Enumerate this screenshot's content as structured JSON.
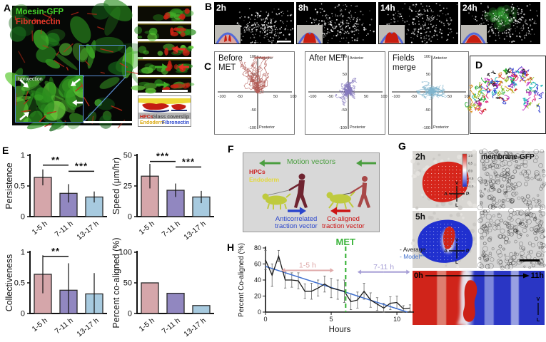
{
  "panels": {
    "A": {
      "label": "A",
      "stain_green": "Moesin-GFP",
      "stain_red": "Fibronectin",
      "inset_label": "t-projection",
      "schematic": {
        "hpcs": "HPCs",
        "endoderm": "Endoderm",
        "glass": "Glass coverslip",
        "fibronectin": "Fibronectin"
      }
    },
    "B": {
      "label": "B",
      "timepoints": [
        "2h",
        "8h",
        "14h",
        "24h"
      ]
    },
    "C": {
      "label": "C",
      "axis": {
        "top": "Anterior",
        "bottom": "Posterior",
        "xticks": [
          "-100",
          "-50",
          "50",
          "100"
        ],
        "xtick_vals": [
          -100,
          -50,
          50,
          100
        ],
        "yticks": [
          "100",
          "50",
          "-50",
          "-100"
        ],
        "ytick_vals": [
          100,
          50,
          -50,
          -100
        ]
      },
      "plots": [
        {
          "title": "Before MET",
          "track_color": "#b25b55"
        },
        {
          "title": "After MET",
          "track_color": "#8579bd"
        },
        {
          "title": "Fields merge",
          "track_color": "#7fb4cc"
        }
      ]
    },
    "D": {
      "label": "D"
    },
    "E": {
      "label": "E"
    },
    "F": {
      "label": "F",
      "motion_vectors": "Motion vectors",
      "hpcs": "HPCs",
      "endoderm": "Endoderm",
      "anticorrelated_line1": "Anticorrelated",
      "anticorrelated_line2": "traction vector",
      "coaligned_line1": "Co-aligned",
      "coaligned_line2": "traction vector",
      "colors": {
        "motion": "#4a9e3f",
        "anticorrelated": "#2b46cc",
        "coaligned": "#cc1414",
        "hpcs": "#cc2222",
        "endoderm": "#e3d83a",
        "dog": "#bfca3e",
        "walker": "#6f2430",
        "runner": "#a84848"
      }
    },
    "G": {
      "label": "G",
      "timepoints": [
        "2h",
        "5h"
      ],
      "membrane_label": "membrane-GFP",
      "colorbar_ticks": [
        "1.0",
        "0.5",
        "0.0",
        "-0.5",
        "-1.0"
      ],
      "compass": {
        "v": "V",
        "a": "A",
        "p": "P",
        "l": "L"
      },
      "kymograph": {
        "start": "0h",
        "end": "11h",
        "v": "V",
        "l": "L"
      },
      "heat_colors": {
        "positive": "#d6251b",
        "negative": "#2030cf"
      }
    },
    "H": {
      "label": "H"
    }
  },
  "chart_data": [
    {
      "id": "persistence",
      "type": "bar",
      "ylabel": "Persistence",
      "categories": [
        "1-5 h",
        "7-11 h",
        "13-17 h"
      ],
      "values": [
        0.64,
        0.38,
        0.32
      ],
      "errors": [
        0.13,
        0.15,
        0.09
      ],
      "ylim": [
        0,
        1
      ],
      "yticks": [
        "0",
        "0.5",
        "1"
      ],
      "ytick_vals": [
        0,
        0.5,
        1
      ],
      "bar_colors": [
        "#d5a6aa",
        "#9187c0",
        "#a7cadf"
      ],
      "significance": [
        {
          "from": 0,
          "to": 1,
          "label": "**",
          "y": 0.84
        },
        {
          "from": 1,
          "to": 2,
          "label": "***",
          "y": 0.74
        }
      ]
    },
    {
      "id": "speed",
      "type": "bar",
      "ylabel": "Speed (μm/hr)",
      "categories": [
        "1-5 h",
        "7-11 h",
        "13-17 h"
      ],
      "values": [
        33,
        21.5,
        16
      ],
      "errors": [
        10,
        5.5,
        5
      ],
      "ylim": [
        0,
        50
      ],
      "yticks": [
        "0",
        "25",
        "50"
      ],
      "ytick_vals": [
        0,
        25,
        50
      ],
      "bar_colors": [
        "#d5a6aa",
        "#9187c0",
        "#a7cadf"
      ],
      "significance": [
        {
          "from": 0,
          "to": 1,
          "label": "***",
          "y": 45
        },
        {
          "from": 1,
          "to": 2,
          "label": "***",
          "y": 40.5
        }
      ]
    },
    {
      "id": "collectiveness",
      "type": "bar",
      "ylabel": "Collectiveness",
      "categories": [
        "1-5 h",
        "7-11 h",
        "13-17 h"
      ],
      "values": [
        0.64,
        0.38,
        0.32
      ],
      "errors": [
        0.31,
        0.44,
        0.34
      ],
      "ylim": [
        0,
        1
      ],
      "yticks": [
        "0",
        "0.5",
        "1"
      ],
      "ytick_vals": [
        0,
        0.5,
        1
      ],
      "bar_colors": [
        "#d5a6aa",
        "#9187c0",
        "#a7cadf"
      ],
      "significance": [
        {
          "from": 0,
          "to": 1,
          "label": "**",
          "y": 0.93
        }
      ]
    },
    {
      "id": "percent-coaligned",
      "type": "bar",
      "ylabel": "Percent co-aligned (%)",
      "categories": [
        "1-5 h",
        "7-11 h",
        "13-17 h"
      ],
      "values": [
        50,
        33,
        13
      ],
      "errors": [
        0,
        0,
        0
      ],
      "ylim": [
        0,
        100
      ],
      "yticks": [
        "0",
        "50",
        "100"
      ],
      "ytick_vals": [
        0,
        50,
        100
      ],
      "bar_colors": [
        "#d5a6aa",
        "#9187c0",
        "#a7cadf"
      ],
      "significance": []
    },
    {
      "id": "coalignment-timecourse",
      "type": "line",
      "ylabel": "Percent Co-aligned (%)",
      "xlabel": "Hours",
      "xlim": [
        0,
        11.3
      ],
      "ylim": [
        0,
        80
      ],
      "yticks": [
        0,
        20,
        40,
        60,
        80
      ],
      "xticks": [
        0,
        5,
        10
      ],
      "x": [
        0,
        0.5,
        1,
        1.5,
        2,
        2.5,
        3,
        3.5,
        4,
        4.5,
        5,
        5.5,
        6,
        6.5,
        7,
        7.5,
        8,
        8.5,
        9,
        9.5,
        10,
        10.5,
        11
      ],
      "series": [
        {
          "name": "Average",
          "color": "#1a1a1a",
          "y": [
            65,
            46,
            70,
            40,
            40,
            39,
            26,
            26,
            30,
            35,
            30,
            28,
            26,
            13,
            15,
            26,
            15,
            10,
            5,
            11,
            12,
            4,
            5
          ],
          "errors": [
            12,
            14,
            7,
            10,
            9,
            10,
            9,
            10,
            10,
            10,
            12,
            12,
            14,
            10,
            10,
            10,
            9,
            8,
            6,
            8,
            8,
            4,
            4
          ]
        },
        {
          "name": "Model**",
          "color": "#3f6fce",
          "line": {
            "x": [
              0,
              10.8
            ],
            "y": [
              57,
              0
            ]
          }
        }
      ],
      "met_marker": {
        "x": 6.1,
        "label": "MET",
        "color": "#3cb43c"
      },
      "spans": [
        {
          "label": "1-5 h",
          "x1": 1.2,
          "x2": 5.2,
          "y": 52,
          "color": "#dfa9a9"
        },
        {
          "label": "7-11 h",
          "x1": 7,
          "x2": 11,
          "y": 50,
          "color": "#a79fd6"
        }
      ],
      "legend": [
        {
          "label": "- Average",
          "color": "#1a1a1a"
        },
        {
          "label": "- Model**",
          "color": "#3f6fce"
        }
      ]
    }
  ]
}
